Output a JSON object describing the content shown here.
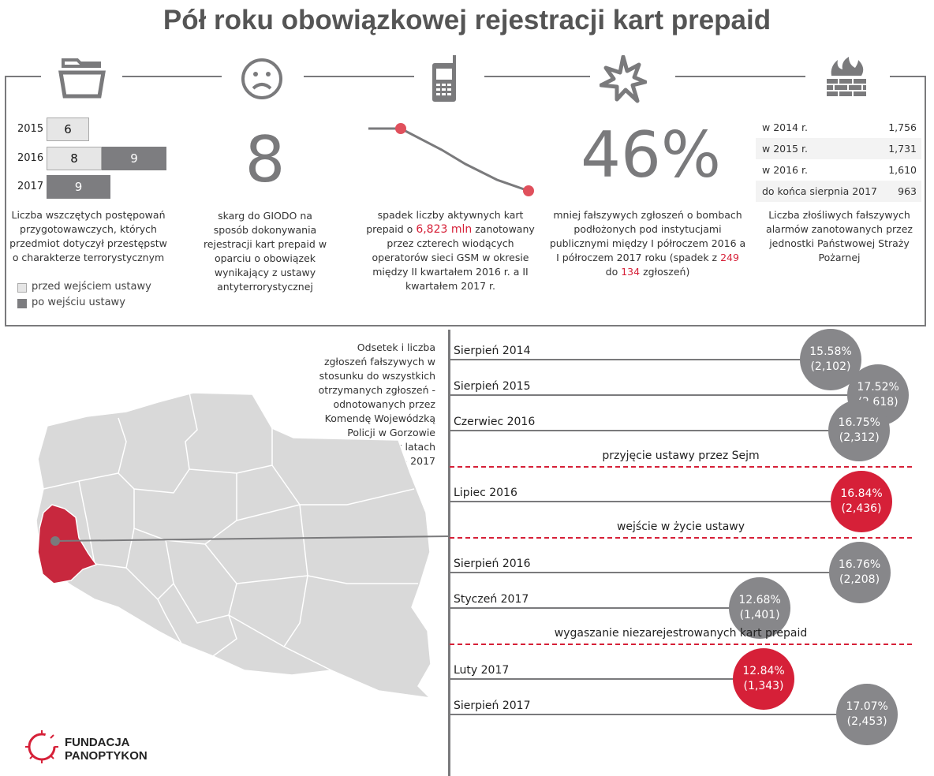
{
  "title": "Pół roku obowiązkowej rejestracji kart prepaid",
  "colors": {
    "accent": "#d62038",
    "gray": "#7a7a7c",
    "light": "#e6e6e6"
  },
  "icons": [
    "folder-icon",
    "sad-face-icon",
    "mobile-phone-icon",
    "explosion-icon",
    "firewall-icon"
  ],
  "proceedings": {
    "rows": [
      {
        "year": "2015",
        "before": "6",
        "after": null
      },
      {
        "year": "2016",
        "before": "8",
        "after": "9"
      },
      {
        "year": "2017",
        "before": null,
        "after": "9"
      }
    ],
    "caption": "Liczba wszczętych postępowań przygotowawczych, których przedmiot dotyczył przestępstw o charakterze terrorystycznym",
    "legend_before": "przed wejściem ustawy",
    "legend_after": "po wejściu ustawy"
  },
  "giodo": {
    "value": "8",
    "caption": "skarg do GIODO na sposób dokonywania rejestracji kart prepaid w  oparciu o obowiązek wynikający z ustawy antyterrorystycznej"
  },
  "cards": {
    "caption_1": "spadek liczby aktywnych kart prepaid o ",
    "highlight": "6,823 mln",
    "caption_2": " zanotowany przez czterech wiodących operatorów sieci GSM w okresie między II kwartałem 2016 r. a II kwartałem 2017 r."
  },
  "bombs": {
    "value": "46%",
    "caption_1": "mniej fałszywych zgłoszeń o bombach podłożonych pod instytucjami publicznymi między I półroczem 2016 a I półroczem 2017 roku (spadek z ",
    "from": "249",
    "caption_2": " do ",
    "to": "134",
    "caption_3": " zgłoszeń)"
  },
  "alarms": {
    "rows": [
      {
        "label": "w 2014 r.",
        "value": "1,756"
      },
      {
        "label": "w 2015 r.",
        "value": "1,731"
      },
      {
        "label": "w 2016 r.",
        "value": "1,610"
      },
      {
        "label": "do końca sierpnia 2017",
        "value": "963"
      }
    ],
    "caption": "Liczba złośliwych fałszywych alarmów zanotowanych przez jednostki Państwowej Straży Pożarnej"
  },
  "map_caption": "Odsetek i liczba zgłoszeń fałszywych w stosunku do wszystkich otrzymanych zgłoszeń - odnotowanych przez Komendę Wojewódzką Policji w Gorzowie Wielkopolskim w latach 2014 - 2017",
  "chart_data": {
    "type": "timeline",
    "items": [
      {
        "label": "Sierpień 2014",
        "percent": "15.58%",
        "pct": 15.58,
        "count": "(2,102)",
        "highlight": false
      },
      {
        "label": "Sierpień 2015",
        "percent": "17.52%",
        "pct": 17.52,
        "count": "(2,618)",
        "highlight": false
      },
      {
        "label": "Czerwiec 2016",
        "percent": "16.75%",
        "pct": 16.75,
        "count": "(2,312)",
        "highlight": false
      },
      {
        "label": "Lipiec 2016",
        "percent": "16.84%",
        "pct": 16.84,
        "count": "(2,436)",
        "highlight": true
      },
      {
        "label": "Sierpień 2016",
        "percent": "16.76%",
        "pct": 16.76,
        "count": "(2,208)",
        "highlight": false
      },
      {
        "label": "Styczeń 2017",
        "percent": "12.68%",
        "pct": 12.68,
        "count": "(1,401)",
        "highlight": false
      },
      {
        "label": "Luty 2017",
        "percent": "12.84%",
        "pct": 12.84,
        "count": "(1,343)",
        "highlight": true
      },
      {
        "label": "Sierpień 2017",
        "percent": "17.07%",
        "pct": 17.07,
        "count": "(2,453)",
        "highlight": false
      }
    ],
    "events": [
      {
        "label": "przyjęcie ustawy przez Sejm",
        "after_index": 2
      },
      {
        "label": "wejście w życie ustawy",
        "after_index": 3
      },
      {
        "label": "wygaszanie niezarejestrowanych kart prepaid",
        "after_index": 5
      }
    ]
  },
  "logo": {
    "line1": "FUNDACJA",
    "line2": "PANOPTYKON"
  }
}
